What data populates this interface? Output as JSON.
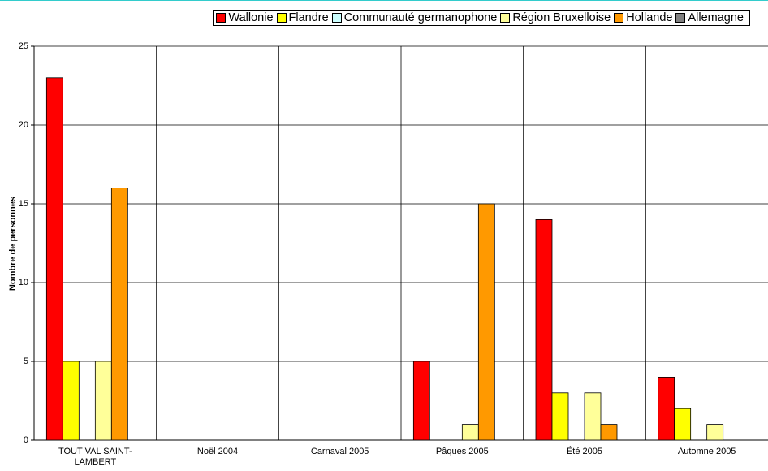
{
  "chart_data": {
    "type": "bar",
    "y_label": "Nombre de personnes",
    "categories": [
      "TOUT VAL SAINT-LAMBERT",
      "Noël 2004",
      "Carnaval 2005",
      "Pâques 2005",
      "Été 2005",
      "Automne 2005"
    ],
    "series": [
      {
        "name": "Wallonie",
        "color": "#ff0000",
        "values": [
          23,
          0,
          0,
          5,
          14,
          4
        ]
      },
      {
        "name": "Flandre",
        "color": "#ffff00",
        "values": [
          5,
          0,
          0,
          0,
          3,
          2
        ]
      },
      {
        "name": "Communauté germanophone",
        "color": "#ccffff",
        "values": [
          0,
          0,
          0,
          0,
          0,
          0
        ]
      },
      {
        "name": "Région Bruxelloise",
        "color": "#ffff99",
        "values": [
          5,
          0,
          0,
          1,
          3,
          1
        ]
      },
      {
        "name": "Hollande",
        "color": "#ff9900",
        "values": [
          16,
          0,
          0,
          15,
          1,
          0
        ]
      },
      {
        "name": "Allemagne",
        "color": "#808080",
        "values": [
          0,
          0,
          0,
          0,
          0,
          0
        ]
      }
    ],
    "ylim": [
      0,
      25
    ],
    "yticks": [
      0,
      5,
      10,
      15,
      20,
      25
    ],
    "grid": true,
    "legend": "top-right"
  }
}
